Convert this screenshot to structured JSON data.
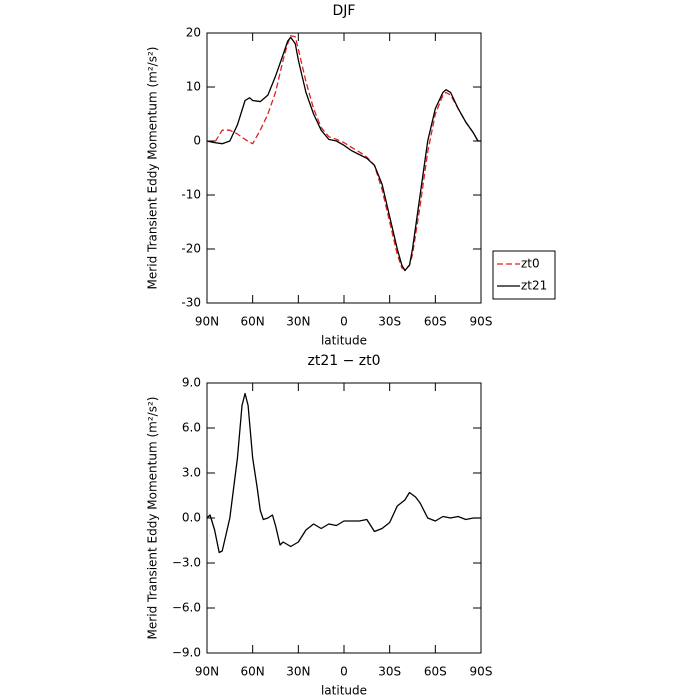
{
  "chart_data": [
    {
      "type": "line",
      "title": "DJF",
      "xlabel": "latitude",
      "ylabel": "Merid Transient Eddy Momentum (m²/s²)",
      "x": [
        90,
        85,
        80,
        75,
        70,
        65,
        62,
        60,
        55,
        50,
        45,
        40,
        37,
        35,
        32,
        30,
        25,
        20,
        15,
        10,
        5,
        0,
        -5,
        -10,
        -15,
        -20,
        -25,
        -30,
        -35,
        -38,
        -40,
        -43,
        -45,
        -50,
        -55,
        -60,
        -65,
        -67,
        -70,
        -75,
        -80,
        -85,
        -88,
        -90
      ],
      "series": [
        {
          "name": "zt0",
          "color": "#e02020",
          "dash": true,
          "values": [
            0,
            -0.3,
            2,
            2,
            1.3,
            0.3,
            -0.2,
            -0.5,
            2,
            5,
            9,
            15,
            18,
            19.5,
            19.3,
            17,
            11,
            6,
            2.5,
            0.8,
            0.3,
            -0.3,
            -1.2,
            -2,
            -3,
            -4.5,
            -9,
            -15,
            -21,
            -23.5,
            -23.8,
            -23,
            -21,
            -12,
            -2,
            5,
            8.5,
            9,
            8.5,
            6,
            3.5,
            1.5,
            0,
            0
          ]
        },
        {
          "name": "zt21",
          "color": "#000000",
          "dash": false,
          "values": [
            0,
            -0.3,
            -0.5,
            0,
            3,
            7.5,
            8,
            7.5,
            7.3,
            8.5,
            12,
            16,
            18.5,
            19.2,
            18,
            15,
            9,
            5,
            2,
            0.3,
            0,
            -0.8,
            -1.8,
            -2.5,
            -3.2,
            -4.5,
            -8,
            -14,
            -20,
            -23,
            -24,
            -23,
            -20,
            -10,
            0,
            6,
            9,
            9.5,
            9,
            6,
            3.5,
            1.5,
            0,
            0
          ]
        }
      ],
      "xlim": [
        90,
        -90
      ],
      "xticks": [
        {
          "value": 90,
          "label": "90N"
        },
        {
          "value": 60,
          "label": "60N"
        },
        {
          "value": 30,
          "label": "30N"
        },
        0,
        {
          "value": -30,
          "label": "30S"
        },
        {
          "value": -60,
          "label": "60S"
        },
        {
          "value": -90,
          "label": "90S"
        }
      ],
      "ylim": [
        -30,
        20
      ],
      "yticks": [
        -30,
        -20,
        -10,
        0,
        10,
        20
      ],
      "legend": "right"
    },
    {
      "type": "line",
      "title": "zt21 − zt0",
      "xlabel": "latitude",
      "ylabel": "Merid Transient Eddy Momentum (m²/s²)",
      "x": [
        90,
        88,
        85,
        82,
        80,
        75,
        70,
        67,
        65,
        63,
        60,
        57,
        55,
        53,
        50,
        47,
        45,
        42,
        40,
        35,
        30,
        25,
        20,
        15,
        10,
        5,
        0,
        -5,
        -10,
        -15,
        -20,
        -25,
        -30,
        -35,
        -40,
        -43,
        -47,
        -50,
        -55,
        -60,
        -65,
        -70,
        -75,
        -80,
        -85,
        -90
      ],
      "series": [
        {
          "color": "#000000",
          "dash": false,
          "values": [
            0,
            0.2,
            -0.8,
            -2.3,
            -2.2,
            0,
            4,
            7.5,
            8.3,
            7.5,
            4,
            2,
            0.5,
            -0.1,
            0,
            0.2,
            -0.5,
            -1.8,
            -1.6,
            -1.9,
            -1.6,
            -0.8,
            -0.4,
            -0.7,
            -0.4,
            -0.5,
            -0.2,
            -0.2,
            -0.2,
            -0.1,
            -0.9,
            -0.7,
            -0.3,
            0.8,
            1.2,
            1.7,
            1.4,
            1,
            0,
            -0.2,
            0.1,
            0,
            0.1,
            -0.1,
            0,
            0
          ]
        }
      ],
      "xlim": [
        90,
        -90
      ],
      "xticks": [
        {
          "value": 90,
          "label": "90N"
        },
        {
          "value": 60,
          "label": "60N"
        },
        {
          "value": 30,
          "label": "30N"
        },
        0,
        {
          "value": -30,
          "label": "30S"
        },
        {
          "value": -60,
          "label": "60S"
        },
        {
          "value": -90,
          "label": "90S"
        }
      ],
      "ylim": [
        -9,
        9
      ],
      "yticks": [
        {
          "value": -9,
          "label": "−9.0"
        },
        {
          "value": -6,
          "label": "−6.0"
        },
        {
          "value": -3,
          "label": "−3.0"
        },
        {
          "value": 0,
          "label": "0.0"
        },
        {
          "value": 3,
          "label": "3.0"
        },
        {
          "value": 6,
          "label": "6.0"
        },
        {
          "value": 9,
          "label": "9.0"
        }
      ]
    }
  ]
}
